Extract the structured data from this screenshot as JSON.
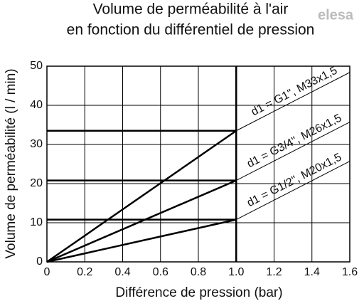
{
  "chart_data": {
    "type": "line",
    "title": [
      "Volume de perméabilité à l'air",
      "en fonction du différentiel de pression"
    ],
    "brand": "elesa",
    "xlabel": "Différence de pression (bar)",
    "ylabel": "Volume de perméabilité (l / min)",
    "xlim": [
      0,
      1.6
    ],
    "xticks": [
      0,
      0.2,
      0.4,
      0.6,
      0.8,
      {
        "value": 1,
        "label": "1.0"
      },
      1.2,
      1.4,
      1.6
    ],
    "ylim": [
      0,
      50
    ],
    "yticks": [
      0,
      10,
      20,
      30,
      40,
      50
    ],
    "grid": true,
    "series": [
      {
        "name": "d1 = G1\", M33x1,5",
        "color": "#000000",
        "x": [
          0,
          1
        ],
        "values": [
          0,
          33.5
        ]
      },
      {
        "name": "d1 = G3/4\", M26x1,5",
        "color": "#000000",
        "x": [
          0,
          1
        ],
        "values": [
          0,
          20.8
        ]
      },
      {
        "name": "d1 = G1/2\", M20x1,5",
        "color": "#000000",
        "x": [
          0,
          1
        ],
        "values": [
          0,
          10.8
        ]
      }
    ]
  }
}
